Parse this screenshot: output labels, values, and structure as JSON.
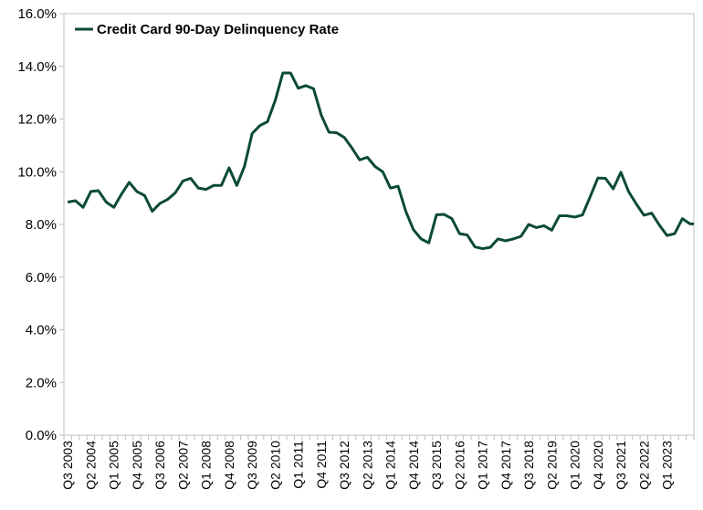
{
  "chart_data": {
    "type": "line",
    "title": "",
    "xlabel": "",
    "ylabel": "",
    "ylim": [
      0,
      16
    ],
    "y_ticks": [
      "0.0%",
      "2.0%",
      "4.0%",
      "6.0%",
      "8.0%",
      "10.0%",
      "12.0%",
      "14.0%",
      "16.0%"
    ],
    "x_tick_labels": [
      "Q3 2003",
      "Q2 2004",
      "Q1 2005",
      "Q4 2005",
      "Q3 2006",
      "Q2 2007",
      "Q1 2008",
      "Q4 2008",
      "Q3 2009",
      "Q2 2010",
      "Q1 2011",
      "Q4 2011",
      "Q3 2012",
      "Q2 2013",
      "Q1 2014",
      "Q4 2014",
      "Q3 2015",
      "Q2 2016",
      "Q1 2017",
      "Q4 2017",
      "Q3 2018",
      "Q2 2019",
      "Q1 2020",
      "Q4 2020",
      "Q3 2021",
      "Q2 2022",
      "Q1 2023"
    ],
    "grid": false,
    "legend_position": "top-left",
    "line_color": "#0b4a37",
    "series": [
      {
        "name": "Credit Card 90-Day Delinquency Rate",
        "values": [
          8.85,
          8.9,
          8.65,
          9.25,
          9.28,
          8.85,
          8.65,
          9.15,
          9.6,
          9.25,
          9.1,
          8.5,
          8.8,
          8.95,
          9.2,
          9.65,
          9.75,
          9.38,
          9.33,
          9.48,
          9.48,
          10.15,
          9.48,
          10.2,
          11.45,
          11.75,
          11.9,
          12.7,
          13.75,
          13.75,
          13.17,
          13.27,
          13.15,
          12.15,
          11.5,
          11.48,
          11.3,
          10.9,
          10.45,
          10.55,
          10.2,
          10.0,
          9.38,
          9.45,
          8.5,
          7.8,
          7.45,
          7.3,
          8.37,
          8.38,
          8.22,
          7.65,
          7.6,
          7.15,
          7.08,
          7.13,
          7.45,
          7.38,
          7.45,
          7.55,
          8.0,
          7.88,
          7.95,
          7.78,
          8.33,
          8.33,
          8.28,
          8.36,
          9.05,
          9.76,
          9.75,
          9.35,
          9.98,
          9.25,
          8.78,
          8.35,
          8.43,
          7.98,
          7.58,
          7.65,
          8.22,
          8.02
        ]
      }
    ]
  }
}
